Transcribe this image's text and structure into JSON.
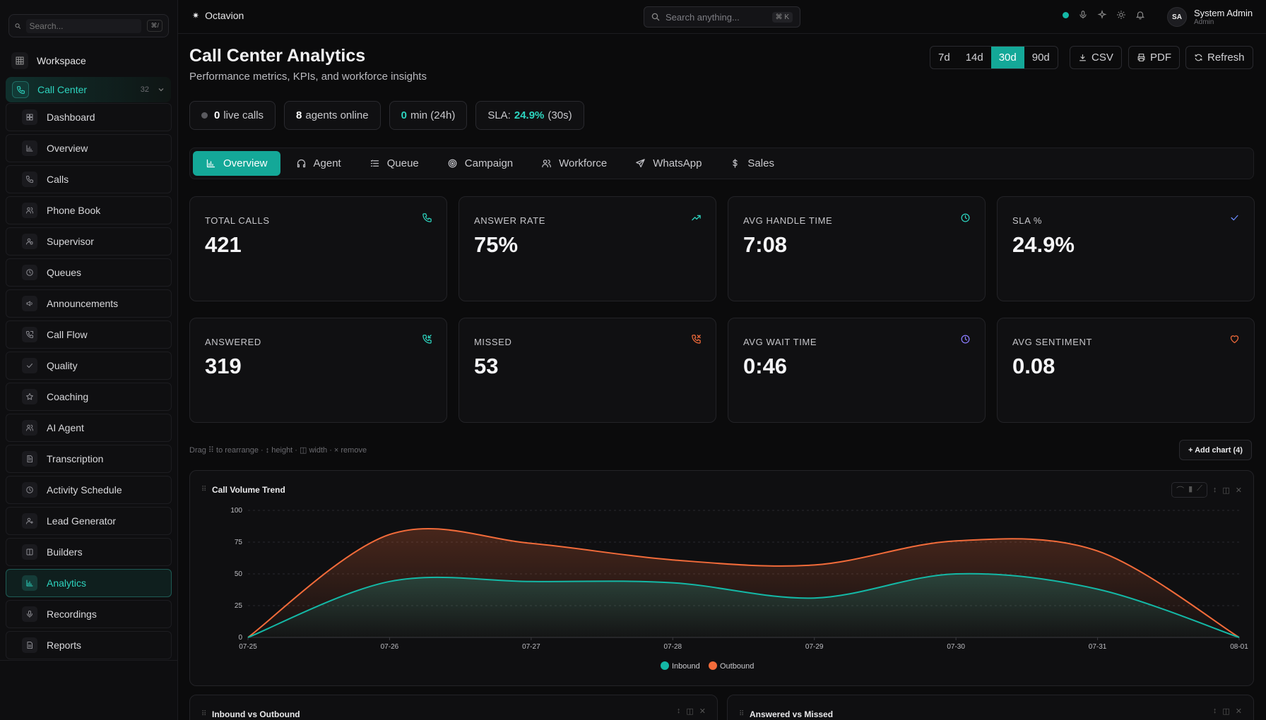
{
  "sidebar": {
    "search_placeholder": "Search...",
    "search_shortcut": "⌘/",
    "workspace_label": "Workspace",
    "section": {
      "label": "Call Center",
      "count": "32"
    },
    "items": [
      {
        "label": "Dashboard",
        "icon": "grid-icon"
      },
      {
        "label": "Overview",
        "icon": "bar-chart-icon"
      },
      {
        "label": "Calls",
        "icon": "phone-icon"
      },
      {
        "label": "Phone Book",
        "icon": "users-icon"
      },
      {
        "label": "Supervisor",
        "icon": "user-shield-icon"
      },
      {
        "label": "Queues",
        "icon": "clock-icon"
      },
      {
        "label": "Announcements",
        "icon": "megaphone-icon"
      },
      {
        "label": "Call Flow",
        "icon": "phone-flow-icon"
      },
      {
        "label": "Quality",
        "icon": "check-icon"
      },
      {
        "label": "Coaching",
        "icon": "star-icon"
      },
      {
        "label": "AI Agent",
        "icon": "users-icon"
      },
      {
        "label": "Transcription",
        "icon": "file-text-icon"
      },
      {
        "label": "Activity Schedule",
        "icon": "clock-icon"
      },
      {
        "label": "Lead Generator",
        "icon": "user-plus-icon"
      },
      {
        "label": "Builders",
        "icon": "columns-icon"
      },
      {
        "label": "Analytics",
        "icon": "bar-chart-icon",
        "active": true
      },
      {
        "label": "Recordings",
        "icon": "mic-icon"
      },
      {
        "label": "Reports",
        "icon": "file-icon"
      }
    ]
  },
  "topbar": {
    "brand": "Octavion",
    "search_placeholder": "Search anything...",
    "search_shortcut": "⌘ K",
    "user_name": "System Admin",
    "user_role": "Admin",
    "avatar_initials": "SA"
  },
  "header": {
    "title": "Call Center Analytics",
    "subtitle": "Performance metrics, KPIs, and workforce insights",
    "ranges": [
      "7d",
      "14d",
      "30d",
      "90d"
    ],
    "active_range": "30d",
    "csv_label": "CSV",
    "pdf_label": "PDF",
    "refresh_label": "Refresh"
  },
  "status": {
    "live_calls_value": "0",
    "live_calls_label": "live calls",
    "agents_value": "8",
    "agents_label": "agents online",
    "min_value": "0",
    "min_label": "min (24h)",
    "sla_prefix": "SLA:",
    "sla_value": "24.9%",
    "sla_suffix": "(30s)"
  },
  "tabs": [
    "Overview",
    "Agent",
    "Queue",
    "Campaign",
    "Workforce",
    "WhatsApp",
    "Sales"
  ],
  "kpis": [
    {
      "label": "TOTAL CALLS",
      "value": "421",
      "icon": "phone-icon",
      "color": "#2dd4bf"
    },
    {
      "label": "ANSWER RATE",
      "value": "75%",
      "icon": "trending-up-icon",
      "color": "#2dd4bf"
    },
    {
      "label": "AVG HANDLE TIME",
      "value": "7:08",
      "icon": "clock-icon",
      "color": "#2dd4bf"
    },
    {
      "label": "SLA %",
      "value": "24.9%",
      "icon": "check-icon",
      "color": "#6b8cff"
    },
    {
      "label": "ANSWERED",
      "value": "319",
      "icon": "phone-incoming-icon",
      "color": "#2dd4bf"
    },
    {
      "label": "MISSED",
      "value": "53",
      "icon": "phone-missed-icon",
      "color": "#f26b3a"
    },
    {
      "label": "AVG WAIT TIME",
      "value": "0:46",
      "icon": "clock-icon",
      "color": "#8b7cff"
    },
    {
      "label": "AVG SENTIMENT",
      "value": "0.08",
      "icon": "heart-icon",
      "color": "#f26b3a"
    }
  ],
  "hint": "Drag ⠿ to rearrange · ↕ height · ◫ width · × remove",
  "add_chart_label": "+ Add chart (4)",
  "chart_title": "Call Volume Trend",
  "mini_charts": [
    "Inbound vs Outbound",
    "Answered vs Missed"
  ],
  "chart_data": {
    "type": "area",
    "x": [
      "07-25",
      "07-26",
      "07-27",
      "07-28",
      "07-29",
      "07-30",
      "07-31",
      "08-01"
    ],
    "ylim": [
      0,
      100
    ],
    "yticks": [
      "0",
      "25",
      "50",
      "75",
      "100"
    ],
    "grid": true,
    "legend_position": "bottom",
    "series": [
      {
        "name": "Inbound",
        "values": [
          0,
          44,
          44,
          43,
          31,
          50,
          38,
          0
        ],
        "color": "#14b8a6"
      },
      {
        "name": "Outbound",
        "values": [
          0,
          81,
          74,
          61,
          57,
          76,
          68,
          0
        ],
        "color": "#f26b3a"
      }
    ]
  }
}
